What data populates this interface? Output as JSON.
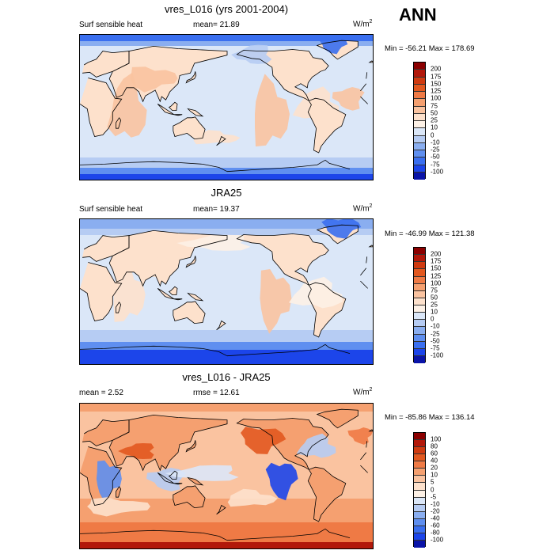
{
  "season": "ANN",
  "panels": [
    {
      "title": "vres_L016 (yrs 2001-2004)",
      "left_label": "Surf sensible heat",
      "center_label": "mean=  21.89",
      "units_base": "W/m",
      "units_sup": "2",
      "minmax": "Min = -56.21 Max = 178.69",
      "colorbar_labels": [
        "200",
        "175",
        "150",
        "125",
        "100",
        "75",
        "50",
        "25",
        "10",
        "0",
        "-10",
        "-25",
        "-50",
        "-75",
        "-100"
      ],
      "colorbar_colors": [
        "#8b0000",
        "#b2180a",
        "#cf3a10",
        "#e2581f",
        "#ef7a45",
        "#f5a070",
        "#fac3a0",
        "#fde1cc",
        "#fdf1e6",
        "#dbe7f8",
        "#b6ccf3",
        "#8aaef0",
        "#5f8ff0",
        "#3a6ff0",
        "#1c45ea",
        "#0a14a8"
      ],
      "field": "heat_L016"
    },
    {
      "title": "JRA25",
      "left_label": "Surf sensible heat",
      "center_label": "mean=  19.37",
      "units_base": "W/m",
      "units_sup": "2",
      "minmax": "Min = -46.99 Max = 121.38",
      "colorbar_labels": [
        "200",
        "175",
        "150",
        "125",
        "100",
        "75",
        "50",
        "25",
        "10",
        "0",
        "-10",
        "-25",
        "-50",
        "-75",
        "-100"
      ],
      "colorbar_colors": [
        "#8b0000",
        "#b2180a",
        "#cf3a10",
        "#e2581f",
        "#ef7a45",
        "#f5a070",
        "#fac3a0",
        "#fde1cc",
        "#fdf1e6",
        "#dbe7f8",
        "#b6ccf3",
        "#8aaef0",
        "#5f8ff0",
        "#3a6ff0",
        "#1c45ea",
        "#0a14a8"
      ],
      "field": "heat_JRA"
    },
    {
      "title": "vres_L016 - JRA25",
      "left_label": "mean =   2.52",
      "center_label": "rmse =  12.61",
      "units_base": "W/m",
      "units_sup": "2",
      "minmax": "Min = -85.86 Max = 136.14",
      "colorbar_labels": [
        "100",
        "80",
        "60",
        "40",
        "20",
        "10",
        "5",
        "0",
        "-5",
        "-10",
        "-20",
        "-40",
        "-60",
        "-80",
        "-100"
      ],
      "colorbar_colors": [
        "#8b0000",
        "#b2180a",
        "#cf3a10",
        "#e2581f",
        "#ef7a45",
        "#f5a070",
        "#fac3a0",
        "#fde1cc",
        "#fdf1e6",
        "#dbe7f8",
        "#b6ccf3",
        "#8aaef0",
        "#5f8ff0",
        "#3a6ff0",
        "#1c45ea",
        "#0a14a8"
      ],
      "field": "diff"
    }
  ]
}
